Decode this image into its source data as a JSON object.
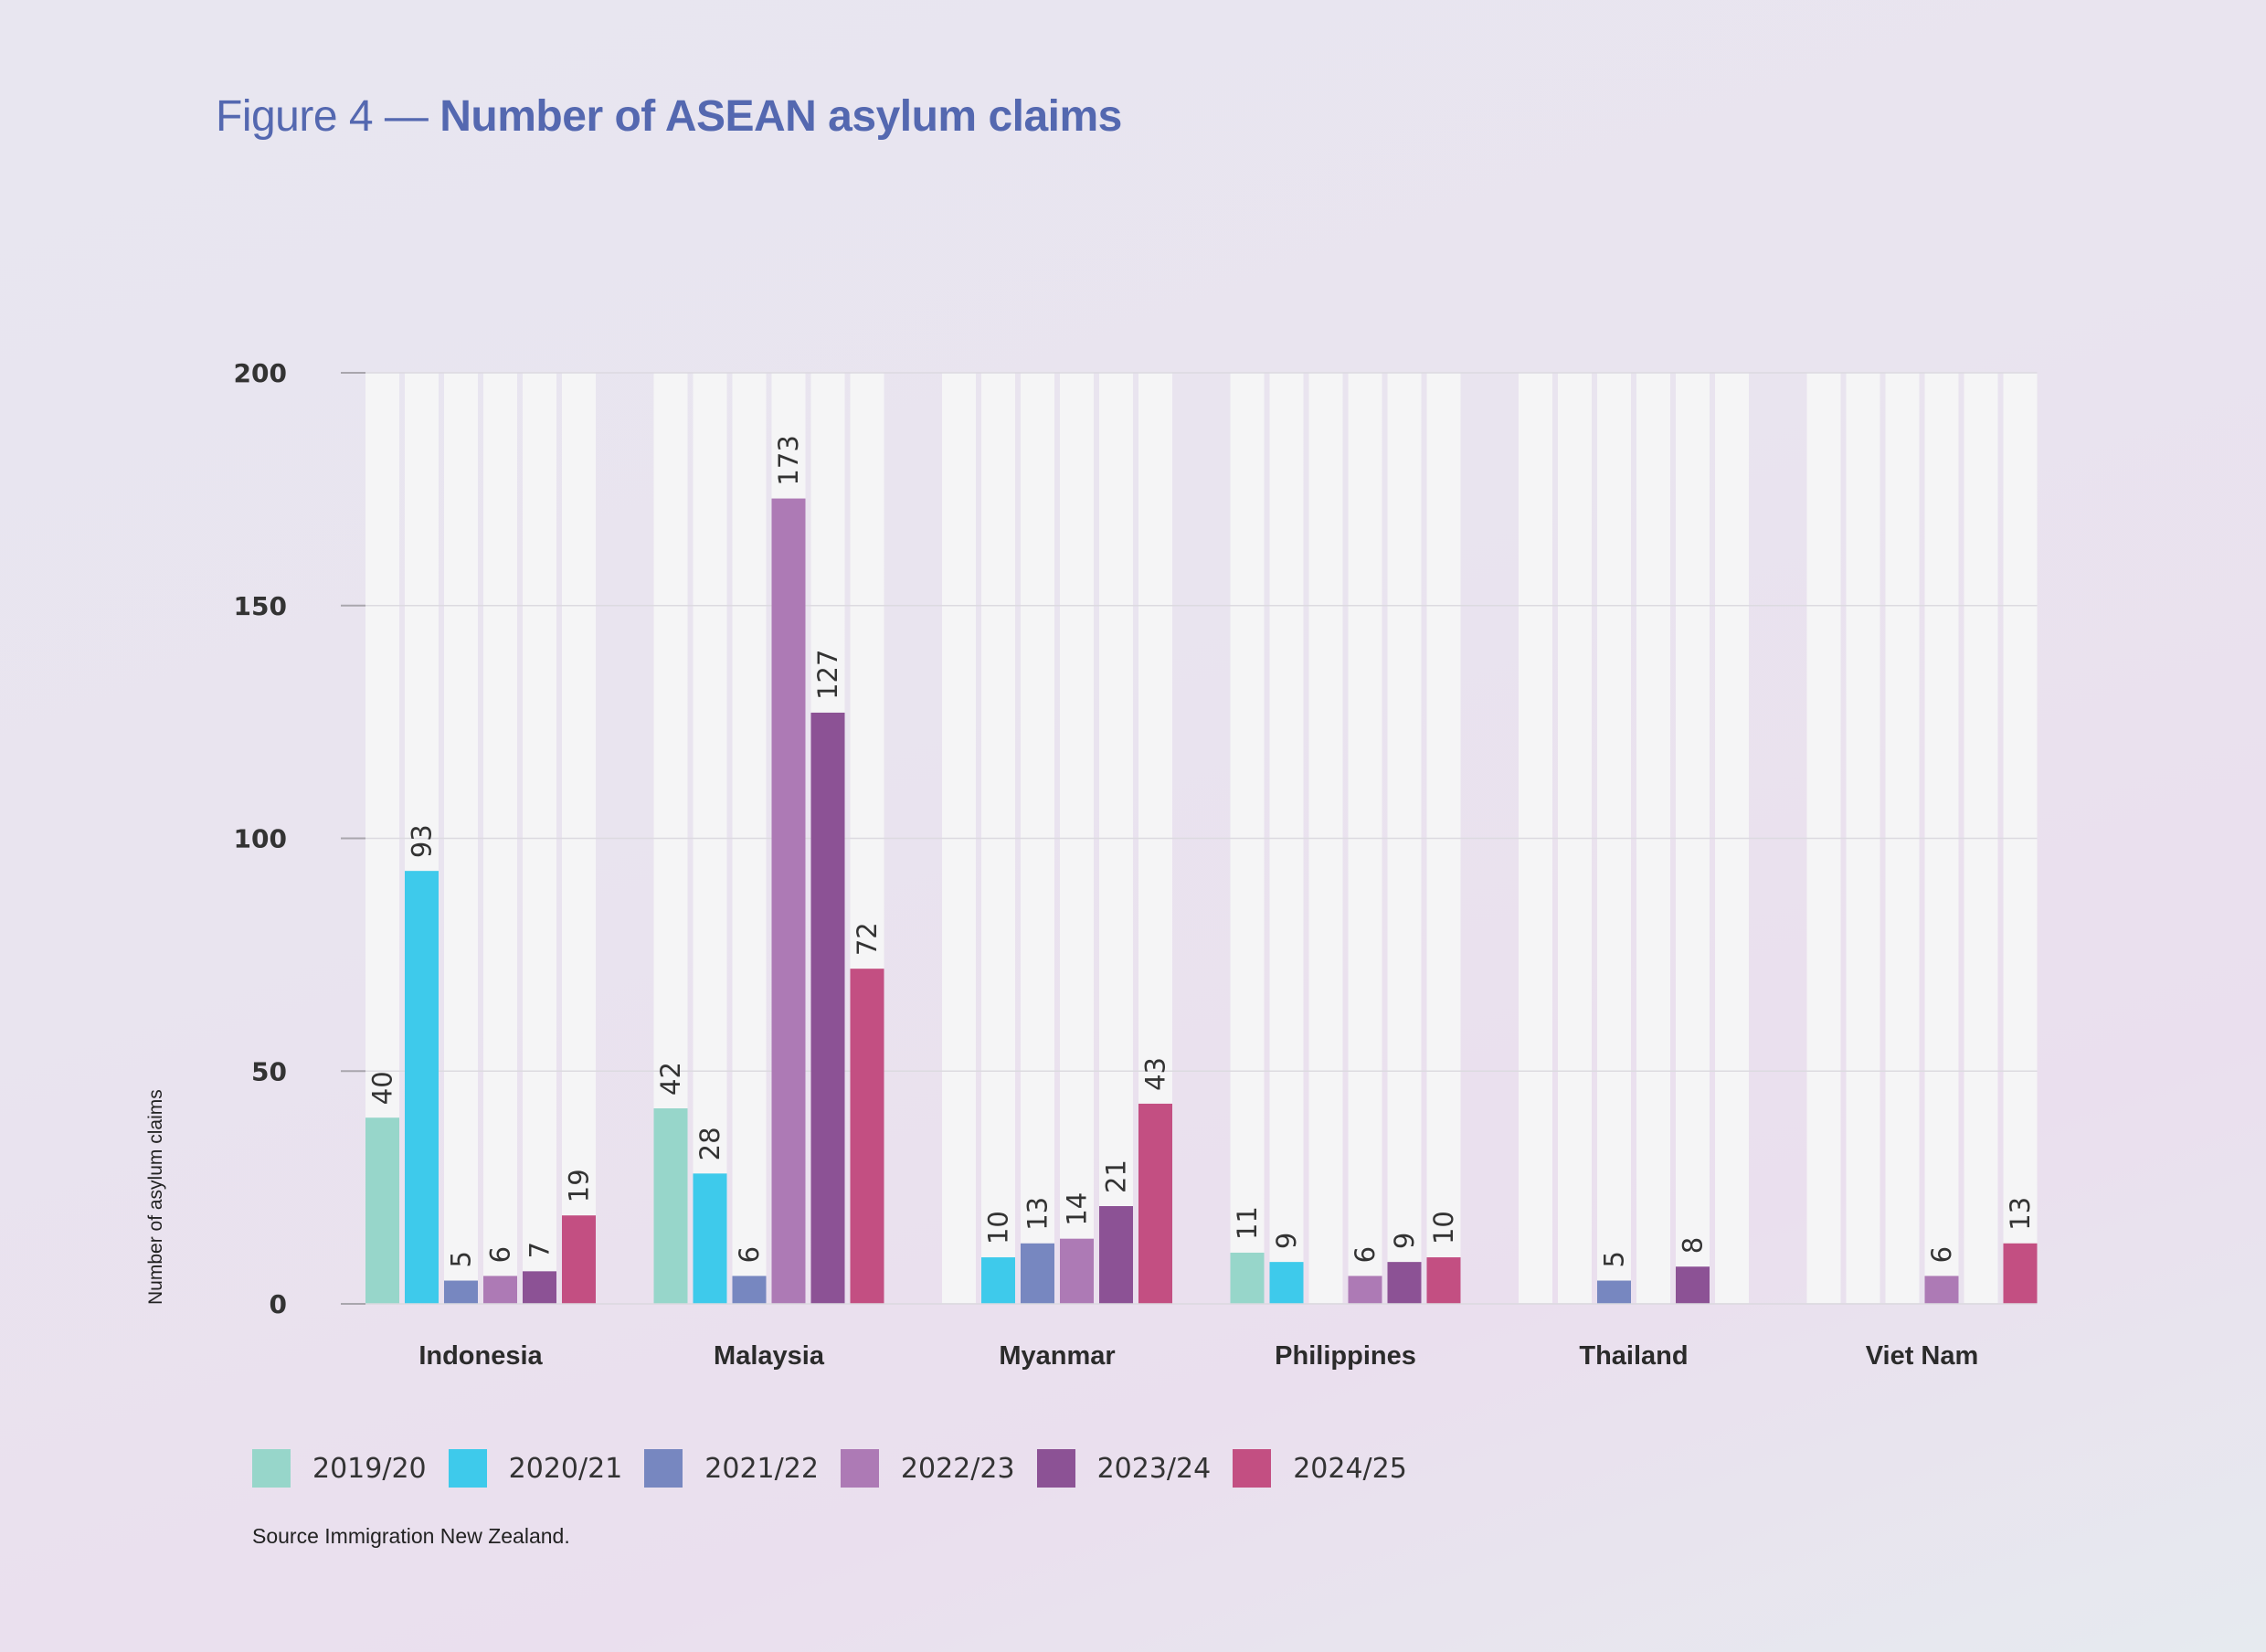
{
  "title": {
    "prefix": "Figure 4 — ",
    "main": "Number of ASEAN asylum claims"
  },
  "source_note": "Source Immigration New Zealand.",
  "chart_data": {
    "type": "bar",
    "title": "Number of ASEAN asylum claims",
    "xlabel": "",
    "ylabel": "Number of asylum claims",
    "ylim": [
      0,
      200
    ],
    "yticks": [
      0,
      50,
      100,
      150,
      200
    ],
    "grid": true,
    "legend_position": "bottom-left",
    "categories": [
      "Indonesia",
      "Malaysia",
      "Myanmar",
      "Philippines",
      "Thailand",
      "Viet Nam"
    ],
    "series": [
      {
        "name": "2019/20",
        "color": "#97d6ca",
        "values": [
          40,
          42,
          null,
          11,
          null,
          null
        ]
      },
      {
        "name": "2020/21",
        "color": "#3ecaeb",
        "values": [
          93,
          28,
          10,
          9,
          null,
          null
        ]
      },
      {
        "name": "2021/22",
        "color": "#7787c0",
        "values": [
          5,
          6,
          13,
          null,
          5,
          null
        ]
      },
      {
        "name": "2022/23",
        "color": "#ad7ab5",
        "values": [
          6,
          173,
          14,
          6,
          null,
          6
        ]
      },
      {
        "name": "2023/24",
        "color": "#8c5295",
        "values": [
          7,
          127,
          21,
          9,
          8,
          null
        ]
      },
      {
        "name": "2024/25",
        "color": "#c34f82",
        "values": [
          19,
          72,
          43,
          10,
          null,
          13
        ]
      }
    ]
  }
}
